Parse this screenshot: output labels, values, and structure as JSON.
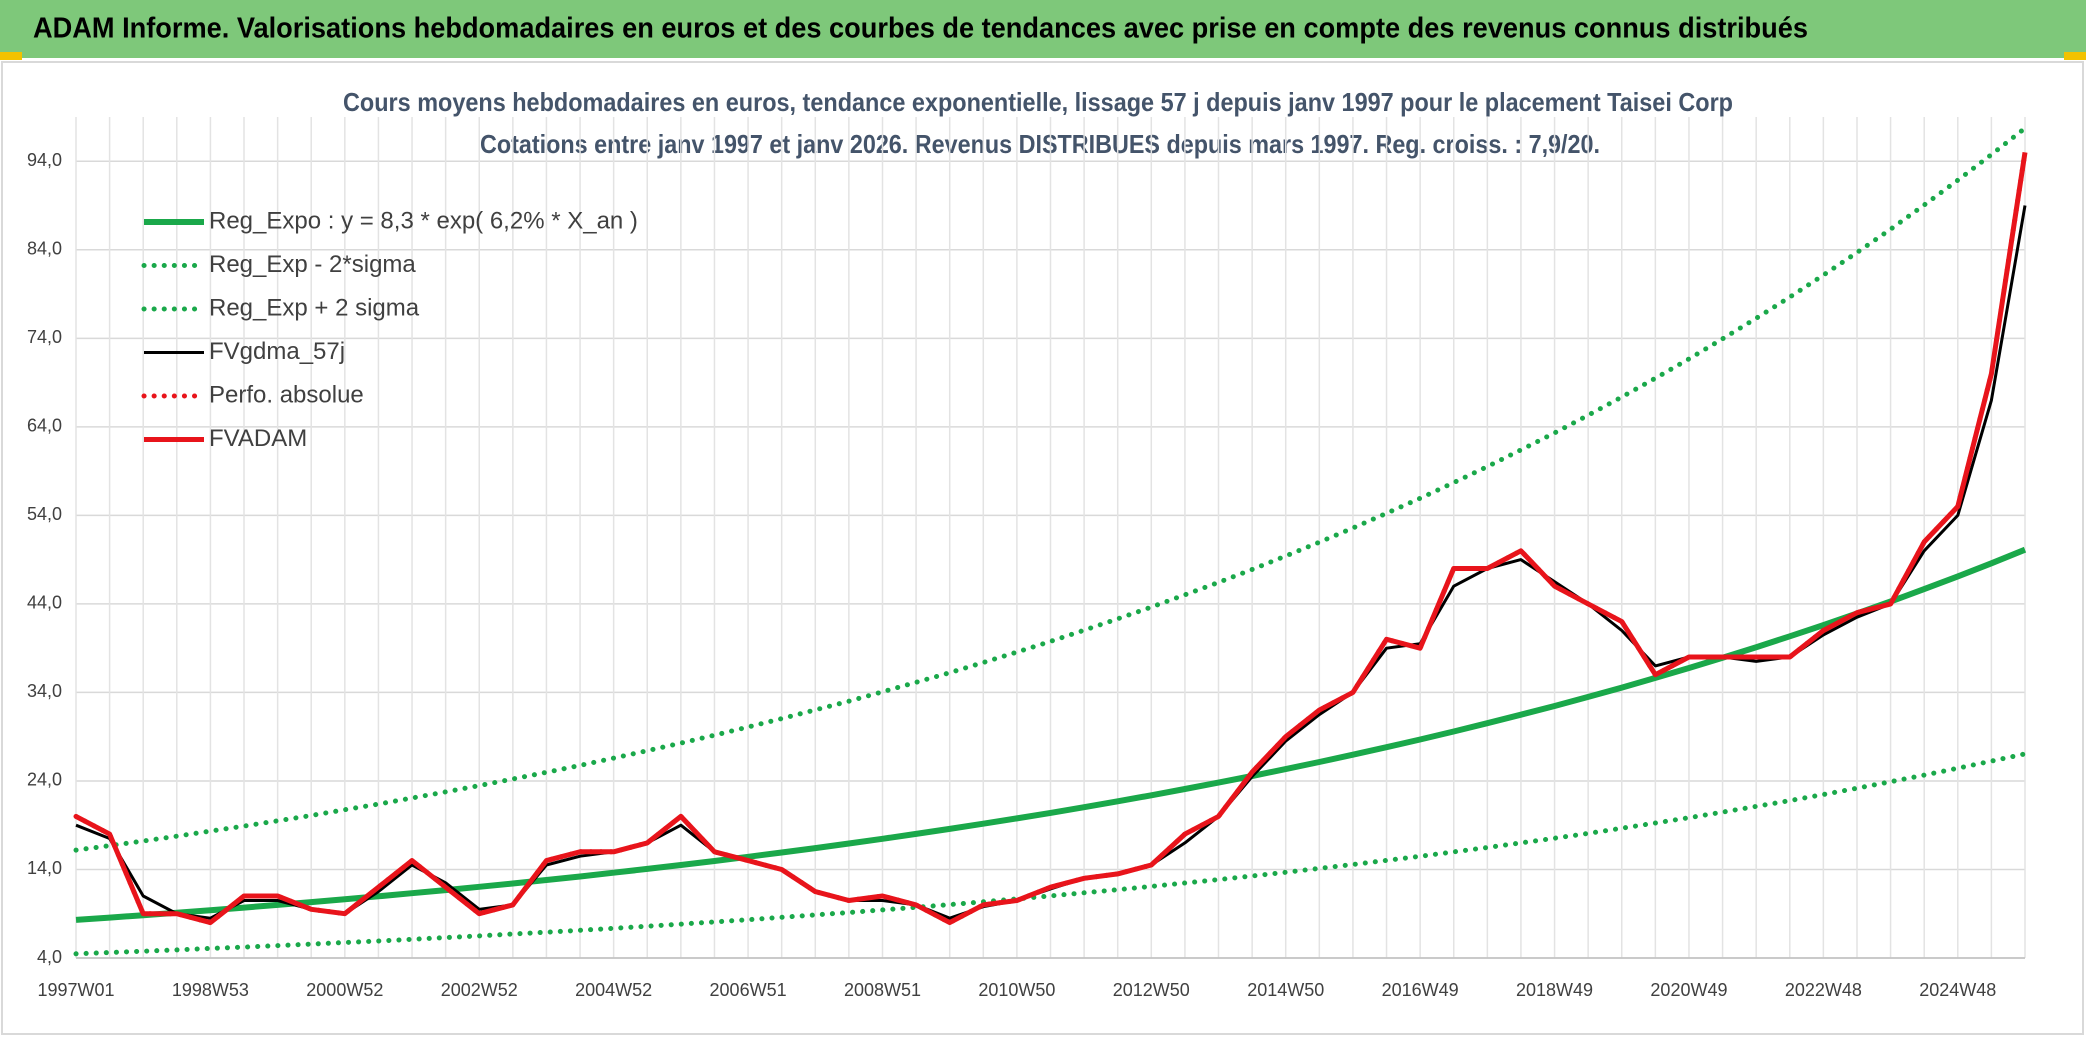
{
  "header": {
    "title": "ADAM Informe. Valorisations hebdomadaires en euros et des courbes de tendances avec prise en compte des revenus connus distribués"
  },
  "chart_data": {
    "type": "line",
    "title": "Cours moyens hebdomadaires en euros, tendance exponentielle, lissage 57 j depuis janv 1997 pour le placement Taisei Corp",
    "subtitle": "Cotations entre janv 1997 et janv 2026. Revenus DISTRIBUES depuis mars 1997. Reg. croiss. : 7,9/20.",
    "categories": [
      "1997W01",
      null,
      null,
      null,
      "1998W53",
      null,
      null,
      null,
      "2000W52",
      null,
      null,
      null,
      "2002W52",
      null,
      null,
      null,
      "2004W52",
      null,
      null,
      null,
      "2006W51",
      null,
      null,
      null,
      "2008W51",
      null,
      null,
      null,
      "2010W50",
      null,
      null,
      null,
      "2012W50",
      null,
      null,
      null,
      "2014W50",
      null,
      null,
      null,
      "2016W49",
      null,
      null,
      null,
      "2018W49",
      null,
      null,
      null,
      "2020W49",
      null,
      null,
      null,
      "2022W48",
      null,
      null,
      null,
      "2024W48",
      null,
      null
    ],
    "ylim": [
      4,
      99
    ],
    "yticks": [
      {
        "value": 4,
        "label": "4,0"
      },
      {
        "value": 14,
        "label": "14,0"
      },
      {
        "value": 24,
        "label": "24,0"
      },
      {
        "value": 34,
        "label": "34,0"
      },
      {
        "value": 44,
        "label": "44,0"
      },
      {
        "value": 54,
        "label": "54,0"
      },
      {
        "value": 64,
        "label": "64,0"
      },
      {
        "value": 74,
        "label": "74,0"
      },
      {
        "value": 84,
        "label": "84,0"
      },
      {
        "value": 94,
        "label": "94,0"
      }
    ],
    "grid": true,
    "legend": "top-left",
    "series": [
      {
        "name": "Reg_Expo : y = 8,3 * exp( 6,2% *  X_an )",
        "color": "#1aa84a",
        "style": "solid",
        "values": [
          8.3,
          8.56,
          8.83,
          9.11,
          9.4,
          9.69,
          10.0,
          10.31,
          10.64,
          10.97,
          11.32,
          11.67,
          12.04,
          12.42,
          12.81,
          13.21,
          13.63,
          14.06,
          14.5,
          14.96,
          15.43,
          15.92,
          16.42,
          16.93,
          17.47,
          18.02,
          18.58,
          19.17,
          19.77,
          20.39,
          21.04,
          21.7,
          22.38,
          23.09,
          23.81,
          24.56,
          25.34,
          26.14,
          26.96,
          27.81,
          28.68,
          29.59,
          30.52,
          31.48,
          32.47,
          33.49,
          34.55,
          35.64,
          36.76,
          37.92,
          39.11,
          40.34,
          41.61,
          42.92,
          44.27,
          45.67,
          47.11,
          48.59,
          50.12
        ]
      },
      {
        "name": "Reg_Exp - 2*sigma",
        "color": "#1aa84a",
        "style": "dotted",
        "values": [
          4.48,
          4.62,
          4.77,
          4.92,
          5.08,
          5.23,
          5.4,
          5.57,
          5.75,
          5.92,
          6.11,
          6.3,
          6.5,
          6.71,
          6.92,
          7.13,
          7.36,
          7.59,
          7.83,
          8.08,
          8.33,
          8.6,
          8.87,
          9.14,
          9.43,
          9.73,
          10.03,
          10.35,
          10.68,
          11.01,
          11.36,
          11.72,
          12.09,
          12.47,
          12.86,
          13.26,
          13.68,
          14.12,
          14.56,
          15.02,
          15.49,
          15.98,
          16.48,
          17.0,
          17.53,
          18.08,
          18.66,
          19.25,
          19.85,
          20.48,
          21.12,
          21.78,
          22.47,
          23.18,
          23.91,
          24.66,
          25.44,
          26.24,
          27.06
        ]
      },
      {
        "name": "Reg_Exp + 2 sigma",
        "color": "#1aa84a",
        "style": "dotted",
        "values": [
          16.19,
          16.69,
          17.22,
          17.76,
          18.33,
          18.9,
          19.5,
          20.1,
          20.75,
          21.39,
          22.07,
          22.76,
          23.48,
          24.22,
          24.98,
          25.76,
          26.58,
          27.42,
          28.28,
          29.17,
          30.09,
          31.04,
          32.02,
          33.01,
          34.07,
          35.14,
          36.23,
          37.38,
          38.55,
          39.76,
          41.03,
          42.32,
          43.64,
          45.03,
          46.43,
          47.89,
          49.41,
          50.97,
          52.57,
          54.23,
          55.93,
          57.7,
          59.51,
          61.39,
          63.32,
          65.31,
          67.37,
          69.5,
          71.68,
          73.94,
          76.26,
          78.66,
          81.14,
          83.69,
          86.33,
          89.06,
          91.86,
          94.75,
          97.73
        ]
      },
      {
        "name": "FVgdma_57j",
        "color": "#000000",
        "style": "solid-thin",
        "values": [
          19,
          17.5,
          11,
          9,
          8.5,
          10.5,
          10.5,
          9.5,
          9,
          11.5,
          14.5,
          12.5,
          9.5,
          10,
          14.5,
          15.5,
          16,
          17,
          19,
          16,
          15,
          14,
          11.5,
          10.5,
          10.5,
          10,
          8.5,
          9.8,
          10.5,
          11.8,
          13,
          13.5,
          14.5,
          17,
          20,
          24.5,
          28.5,
          31.5,
          34,
          39,
          39.5,
          46,
          48,
          49,
          46.5,
          44,
          41,
          37,
          38,
          38,
          37.5,
          38,
          40.5,
          42.5,
          44,
          50,
          54,
          67,
          89
        ]
      },
      {
        "name": "Perfo. absolue",
        "color": "#e8141b",
        "style": "dotted",
        "values": [
          20,
          18,
          9,
          9,
          8,
          11,
          11,
          9.5,
          9,
          12,
          15,
          12,
          9,
          10,
          15,
          16,
          16,
          17,
          20,
          16,
          15,
          14,
          11.5,
          10.5,
          11,
          10,
          8,
          10,
          10.5,
          12,
          13,
          13.5,
          14.5,
          18,
          20,
          25,
          29,
          32,
          34,
          40,
          39,
          48,
          48,
          50,
          46,
          44,
          42,
          36,
          38,
          38,
          38,
          38,
          41,
          43,
          44,
          51,
          55,
          70,
          95
        ]
      },
      {
        "name": "FVADAM",
        "color": "#e8141b",
        "style": "solid",
        "values": [
          20,
          18,
          9,
          9,
          8,
          11,
          11,
          9.5,
          9,
          12,
          15,
          12,
          9,
          10,
          15,
          16,
          16,
          17,
          20,
          16,
          15,
          14,
          11.5,
          10.5,
          11,
          10,
          8,
          10,
          10.5,
          12,
          13,
          13.5,
          14.5,
          18,
          20,
          25,
          29,
          32,
          34,
          40,
          39,
          48,
          48,
          50,
          46,
          44,
          42,
          36,
          38,
          38,
          38,
          38,
          41,
          43,
          44,
          51,
          55,
          70,
          95
        ]
      }
    ]
  }
}
